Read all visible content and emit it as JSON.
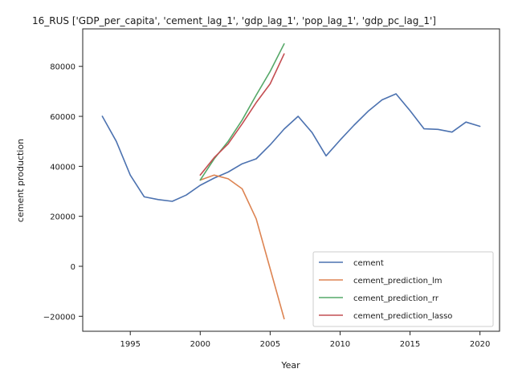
{
  "chart_data": {
    "type": "line",
    "title": "16_RUS ['GDP_per_capita', 'cement_lag_1', 'gdp_lag_1', 'pop_lag_1', 'gdp_pc_lag_1']",
    "xlabel": "Year",
    "ylabel": "cement production",
    "xlim": [
      1991.6,
      2021.4
    ],
    "ylim": [
      -26000,
      95000
    ],
    "xticks": [
      1995,
      2000,
      2005,
      2010,
      2015,
      2020
    ],
    "yticks": [
      -20000,
      0,
      20000,
      40000,
      60000,
      80000
    ],
    "grid": false,
    "legend_position": "lower-right",
    "series": [
      {
        "name": "cement",
        "color": "#4c72b0",
        "x": [
          1993,
          1994,
          1995,
          1996,
          1997,
          1998,
          1999,
          2000,
          2001,
          2002,
          2003,
          2004,
          2005,
          2006,
          2007,
          2008,
          2009,
          2010,
          2011,
          2012,
          2013,
          2014,
          2015,
          2016,
          2017,
          2018,
          2019,
          2020
        ],
        "y": [
          60000,
          50000,
          36500,
          27800,
          26700,
          26000,
          28500,
          32400,
          35300,
          37700,
          41000,
          43000,
          48600,
          54900,
          60000,
          53500,
          44200,
          50500,
          56500,
          62000,
          66600,
          69000,
          62300,
          55000,
          54800,
          53700,
          57700,
          56000
        ]
      },
      {
        "name": "cement_prediction_lm",
        "color": "#dd8452",
        "x": [
          2000,
          2001,
          2002,
          2003,
          2004,
          2005,
          2006
        ],
        "y": [
          34500,
          36500,
          35000,
          31000,
          19000,
          -1000,
          -21000
        ]
      },
      {
        "name": "cement_prediction_rr",
        "color": "#55a868",
        "x": [
          2000,
          2001,
          2002,
          2003,
          2004,
          2005,
          2006
        ],
        "y": [
          34500,
          43000,
          50000,
          58500,
          68500,
          78000,
          89000
        ]
      },
      {
        "name": "cement_prediction_lasso",
        "color": "#c44e52",
        "x": [
          2000,
          2001,
          2002,
          2003,
          2004,
          2005,
          2006
        ],
        "y": [
          36500,
          43500,
          49000,
          57000,
          65500,
          73000,
          85000
        ]
      }
    ]
  }
}
